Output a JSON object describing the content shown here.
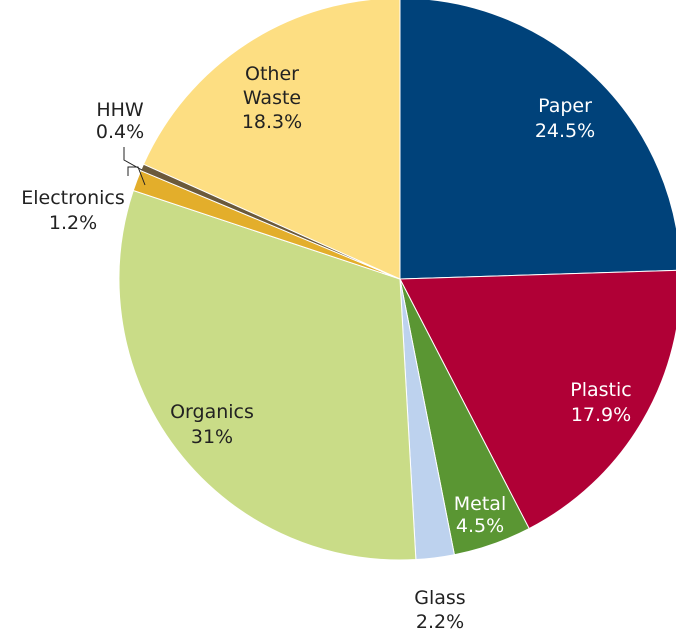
{
  "chart_data": {
    "type": "pie",
    "title": "",
    "start": "12 o'clock",
    "direction": "clockwise",
    "slices": [
      {
        "name": "Paper",
        "value": 24.5,
        "color": "#00427A",
        "pct_label": "24.5%",
        "label_color": "#ffffff"
      },
      {
        "name": "Plastic",
        "value": 17.9,
        "color": "#B00036",
        "pct_label": "17.9%",
        "label_color": "#ffffff"
      },
      {
        "name": "Metal",
        "value": 4.5,
        "color": "#5A9633",
        "pct_label": "4.5%",
        "label_color": "#ffffff"
      },
      {
        "name": "Glass",
        "value": 2.2,
        "color": "#BDD2EE",
        "pct_label": "2.2%",
        "label_color": "#222222"
      },
      {
        "name": "Organics",
        "value": 31,
        "color": "#C9DC87",
        "pct_label": "31%",
        "label_color": "#222222"
      },
      {
        "name": "Electronics",
        "value": 1.2,
        "color": "#E3AE2B",
        "pct_label": "1.2%",
        "label_color": "#222222"
      },
      {
        "name": "HHW",
        "value": 0.4,
        "color": "#6B5A3B",
        "pct_label": "0.4%",
        "label_color": "#222222"
      },
      {
        "name": "Other Waste",
        "value": 18.3,
        "color": "#FDDE82",
        "pct_label": "18.3%",
        "label_color": "#222222"
      }
    ]
  }
}
